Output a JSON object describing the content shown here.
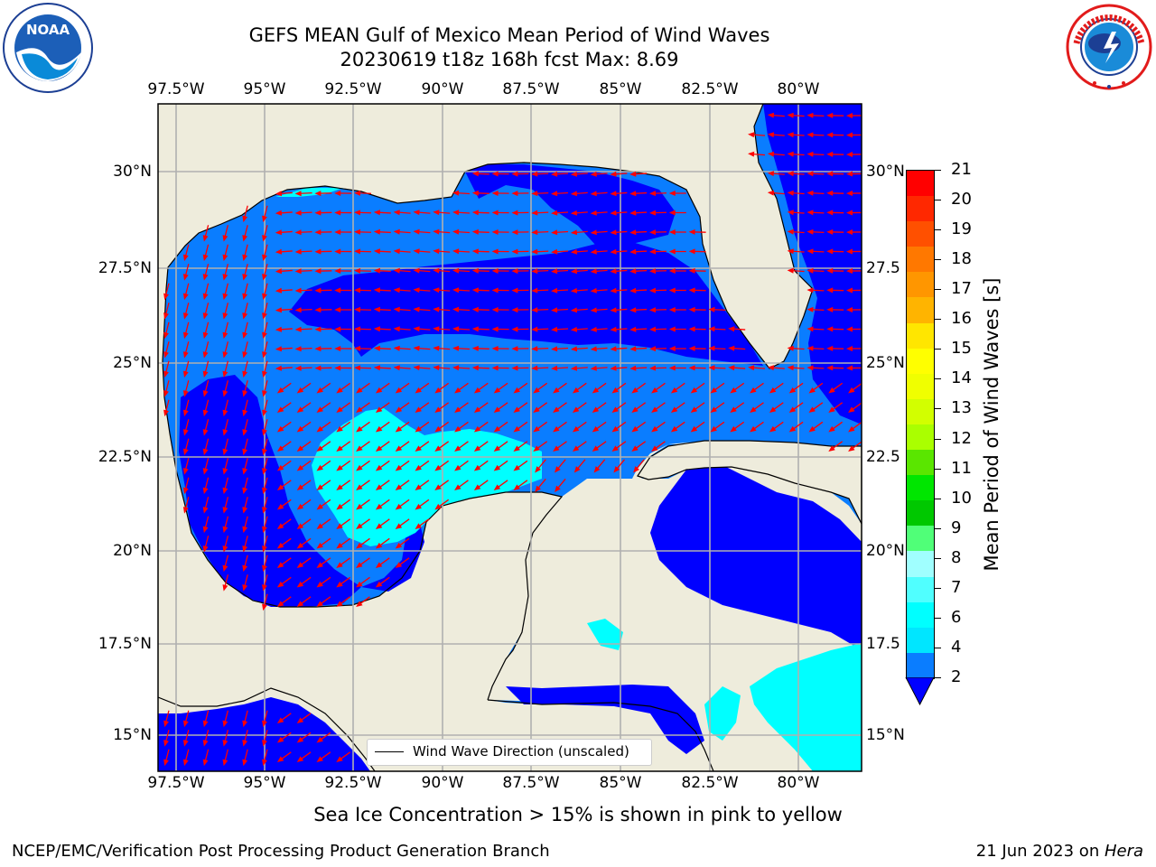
{
  "title": {
    "line1": "GEFS MEAN Gulf of Mexico Mean Period of Wind Waves",
    "line2": "20230619 t18z 168h fcst   Max: 8.69"
  },
  "map": {
    "lon_labels": [
      "97.5°W",
      "95°W",
      "92.5°W",
      "90°W",
      "87.5°W",
      "85°W",
      "82.5°W",
      "80°W"
    ],
    "lat_labels_left": [
      "30°N",
      "27.5°N",
      "25°N",
      "22.5°N",
      "20°N",
      "17.5°N",
      "15°N"
    ],
    "lat_labels_right": [
      "30°N",
      "27.5",
      "25°N",
      "22.5",
      "20°N",
      "17.5",
      "15°N"
    ],
    "legend_label": "Wind Wave Direction (unscaled)",
    "colors": {
      "land": "#eeecdc",
      "dark_blue": "#0000ff",
      "mid_blue": "#0a7dff",
      "cyan": "#00ffff",
      "arrow": "#ff0000",
      "grid": "#b0b0b0"
    }
  },
  "colorbar": {
    "label": "Mean Period of Wind Waves [s]",
    "ticks": [
      "21",
      "20",
      "19",
      "18",
      "17",
      "16",
      "15",
      "14",
      "13",
      "12",
      "11",
      "10",
      "9",
      "8",
      "7",
      "6",
      "4",
      "2"
    ],
    "colors_top_to_bottom": [
      "#ff0000",
      "#ff2800",
      "#ff5000",
      "#ff7800",
      "#ff9600",
      "#ffb400",
      "#ffe600",
      "#ffff00",
      "#f0ff00",
      "#d2ff00",
      "#aaff00",
      "#5ae600",
      "#00e600",
      "#00c800",
      "#50ff78",
      "#a0ffff",
      "#50ffff",
      "#00ffff",
      "#00e6ff",
      "#0a7dff"
    ],
    "extend_color": "#0000ff"
  },
  "caption": "Sea Ice Concentration > 15% is shown in pink to yellow",
  "footer": {
    "left": "NCEP/EMC/Verification Post Processing Product Generation Branch",
    "right_date": "21 Jun 2023 on ",
    "right_host": "Hera"
  },
  "logos": {
    "noaa": "NOAA",
    "nws": "NATIONAL WEATHER SERVICE"
  }
}
